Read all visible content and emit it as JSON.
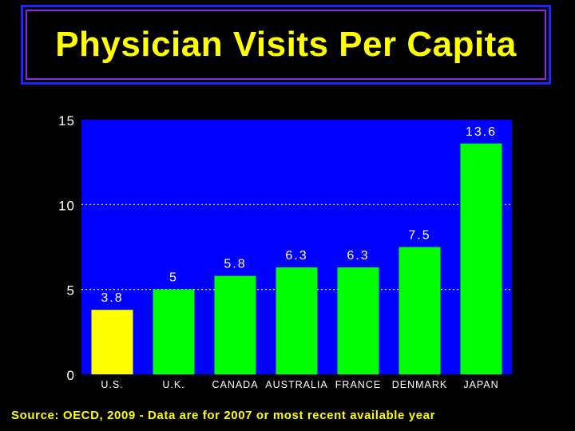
{
  "title": "Physician Visits Per Capita",
  "source": "Source: OECD, 2009 - Data are for 2007 or most recent available year",
  "colors": {
    "background": "#000000",
    "plot_area": "#0000ff",
    "highlight_bar": "#ffff00",
    "bar": "#00ff00",
    "text": "#ffffff",
    "title": "#ffff00"
  },
  "chart_data": {
    "type": "bar",
    "categories": [
      "U.S.",
      "U.K.",
      "CANADA",
      "AUSTRALIA",
      "FRANCE",
      "DENMARK",
      "JAPAN"
    ],
    "values": [
      3.8,
      5,
      5.8,
      6.3,
      6.3,
      7.5,
      13.6
    ],
    "value_labels": [
      "3.8",
      "5",
      "5.8",
      "6.3",
      "6.3",
      "7.5",
      "13.6"
    ],
    "highlight_index": 0,
    "yticks": [
      "0",
      "5",
      "10",
      "15"
    ],
    "ylim": [
      0,
      15
    ],
    "grid": "dotted horizontal at 5 and 10",
    "title": "Physician Visits Per Capita",
    "xlabel": "",
    "ylabel": ""
  }
}
